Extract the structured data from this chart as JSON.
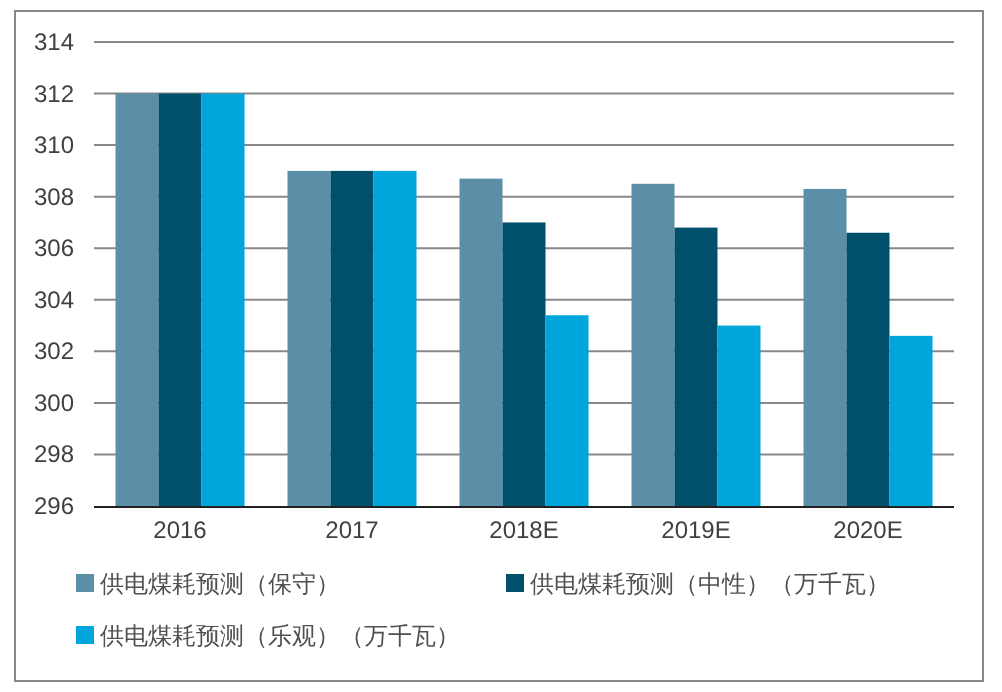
{
  "chart_data": {
    "type": "bar",
    "categories": [
      "2016",
      "2017",
      "2018E",
      "2019E",
      "2020E"
    ],
    "series": [
      {
        "name": "供电煤耗预测（保守）",
        "color": "#5b8fa8",
        "values": [
          312,
          309,
          308.7,
          308.5,
          308.3
        ]
      },
      {
        "name": "供电煤耗预测（中性）（万千瓦）",
        "color": "#004f6b",
        "values": [
          312,
          309,
          307.0,
          306.8,
          306.6
        ]
      },
      {
        "name": "供电煤耗预测（乐观）（万千瓦）",
        "color": "#00a5dc",
        "values": [
          312,
          309,
          303.4,
          303.0,
          302.6
        ]
      }
    ],
    "ylim": [
      296,
      314
    ],
    "yticks": [
      296,
      298,
      300,
      302,
      304,
      306,
      308,
      310,
      312,
      314
    ],
    "grid": "y",
    "legend": "bottom"
  }
}
